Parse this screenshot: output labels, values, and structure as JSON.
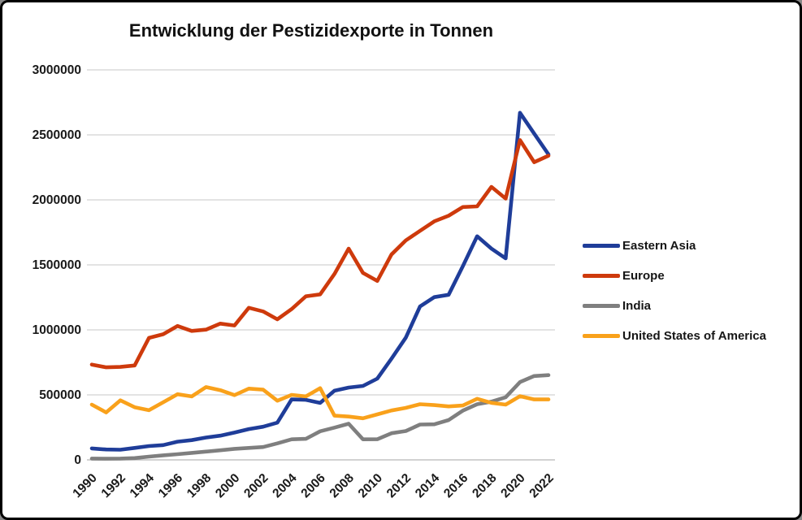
{
  "chart_data": {
    "type": "line",
    "title": "Entwicklung der Pestizidexporte in Tonnen",
    "unit": "Tonnen",
    "x": [
      1990,
      1991,
      1992,
      1993,
      1994,
      1995,
      1996,
      1997,
      1998,
      1999,
      2000,
      2001,
      2002,
      2003,
      2004,
      2005,
      2006,
      2007,
      2008,
      2009,
      2010,
      2011,
      2012,
      2013,
      2014,
      2015,
      2016,
      2017,
      2018,
      2019,
      2020,
      2021,
      2022
    ],
    "x_tick_labels": [
      "1990",
      "1992",
      "1994",
      "1996",
      "1998",
      "2000",
      "2002",
      "2004",
      "2006",
      "2008",
      "2010",
      "2012",
      "2014",
      "2016",
      "2018",
      "2020",
      "2022"
    ],
    "y_ticks": [
      0,
      500000,
      1000000,
      1500000,
      2000000,
      2500000,
      3000000
    ],
    "y_tick_labels": [
      "0",
      "500000",
      "1000000",
      "1500000",
      "2000000",
      "2500000",
      "3000000"
    ],
    "ylim": [
      0,
      3000000
    ],
    "grid": "horizontal",
    "legend_position": "right",
    "series": [
      {
        "name": "Eastern Asia",
        "color": "#1F3D99",
        "values": [
          88000,
          80000,
          78000,
          92000,
          106000,
          114000,
          140000,
          152000,
          172000,
          186000,
          210000,
          237000,
          255000,
          286000,
          465000,
          462000,
          438000,
          532000,
          556000,
          569000,
          625000,
          779000,
          940000,
          1180000,
          1252000,
          1270000,
          1490000,
          1720000,
          1625000,
          1550000,
          2670000,
          2510000,
          2350000
        ]
      },
      {
        "name": "Europe",
        "color": "#CE3A0C",
        "values": [
          733000,
          712000,
          715000,
          726000,
          938000,
          966000,
          1030000,
          992000,
          1002000,
          1048000,
          1034000,
          1170000,
          1142000,
          1081000,
          1160000,
          1258000,
          1273000,
          1430000,
          1625000,
          1438000,
          1376000,
          1580000,
          1688000,
          1762000,
          1835000,
          1878000,
          1945000,
          1950000,
          2100000,
          2010000,
          2460000,
          2290000,
          2340000
        ]
      },
      {
        "name": "India",
        "color": "#7F7F7F",
        "values": [
          10000,
          9000,
          10000,
          14000,
          25000,
          35000,
          44000,
          54000,
          64000,
          74000,
          85000,
          92000,
          99000,
          127000,
          158000,
          162000,
          220000,
          248000,
          278000,
          158000,
          159000,
          205000,
          222000,
          272000,
          274000,
          306000,
          379000,
          428000,
          448000,
          482000,
          598000,
          645000,
          652000
        ]
      },
      {
        "name": "United States of America",
        "color": "#F9A11B",
        "values": [
          425000,
          365000,
          458000,
          405000,
          382000,
          443000,
          505000,
          488000,
          560000,
          536000,
          498000,
          548000,
          540000,
          455000,
          500000,
          488000,
          552000,
          340000,
          333000,
          320000,
          350000,
          380000,
          400000,
          428000,
          421000,
          411000,
          418000,
          470000,
          439000,
          425000,
          490000,
          465000,
          465000
        ]
      }
    ],
    "colors": {
      "gridline": "#D2D2D2",
      "zero_line": "#B8B8B8",
      "tick_text": "#1A1A1A",
      "background": "#FFFFFF",
      "frame_border": "#000000"
    }
  }
}
